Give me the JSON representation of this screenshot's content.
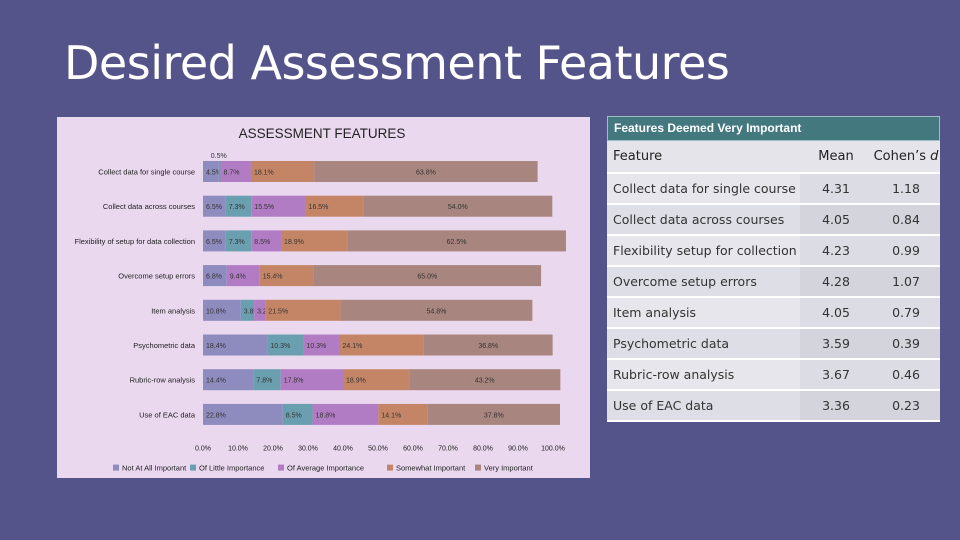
{
  "slide": {
    "title": "Desired Assessment Features"
  },
  "chart_data": {
    "type": "bar",
    "orientation": "horizontal",
    "stacked": true,
    "title": "ASSESSMENT FEATURES",
    "categories": [
      "Collect data for single course",
      "Collect data across courses",
      "Flexibility of setup for data collection",
      "Overcome setup errors",
      "Item analysis",
      "Psychometric data",
      "Rubric-row analysis",
      "Use of EAC data"
    ],
    "series": [
      {
        "name": "Not At All Important",
        "color": "#8e8bbf",
        "values": [
          4.5,
          6.5,
          6.5,
          6.8,
          10.8,
          18.4,
          14.4,
          22.8
        ],
        "labels": [
          "4.5%",
          "6.5%",
          "6.5%",
          "6.8%",
          "10.8%",
          "18.4%",
          "14.4%",
          "22.8%"
        ]
      },
      {
        "name": "Of Little Importance",
        "color": "#6a9fb0",
        "values": [
          0.5,
          7.3,
          7.3,
          0.0,
          3.8,
          10.3,
          7.8,
          8.5
        ],
        "labels": [
          "0.5%",
          "7.3%",
          "7.3%",
          "",
          "3.8%",
          "10.3%",
          "7.8%",
          "8.5%"
        ]
      },
      {
        "name": "Of Average Importance",
        "color": "#b27cc4",
        "values": [
          8.7,
          15.5,
          8.5,
          9.4,
          3.2,
          10.3,
          17.8,
          18.8
        ],
        "labels": [
          "8.7%",
          "15.5%",
          "8.5%",
          "9.4%",
          "3.2%",
          "10.3%",
          "17.8%",
          "18.8%"
        ]
      },
      {
        "name": "Somewhat Important",
        "color": "#c48566",
        "values": [
          18.1,
          16.5,
          18.9,
          15.4,
          21.5,
          24.1,
          18.9,
          14.1
        ],
        "labels": [
          "18.1%",
          "16.5%",
          "18.9%",
          "15.4%",
          "21.5%",
          "24.1%",
          "18.9%",
          "14.1%"
        ]
      },
      {
        "name": "Very Important",
        "color": "#a8857e",
        "values": [
          63.8,
          54.0,
          62.5,
          65.0,
          54.8,
          36.8,
          43.2,
          37.8
        ],
        "labels": [
          "63.8%",
          "54.0%",
          "62.5%",
          "65.0%",
          "54.8%",
          "36.8%",
          "43.2%",
          "37.8%"
        ]
      }
    ],
    "xlim": [
      0,
      100
    ],
    "xticks": [
      "0.0%",
      "10.0%",
      "20.0%",
      "30.0%",
      "40.0%",
      "50.0%",
      "60.0%",
      "70.0%",
      "80.0%",
      "90.0%",
      "100.0%"
    ],
    "legend": "bottom",
    "grid": false
  },
  "table": {
    "caption": "Features Deemed Very Important",
    "headers": {
      "feature": "Feature",
      "mean": "Mean",
      "d_prefix": "Cohen’s ",
      "d_symbol": "d"
    },
    "rows": [
      {
        "feature": "Collect data for single course",
        "mean": "4.31",
        "d": "1.18"
      },
      {
        "feature": "Collect data across courses",
        "mean": "4.05",
        "d": "0.84"
      },
      {
        "feature": "Flexibility setup for collection",
        "mean": "4.23",
        "d": "0.99"
      },
      {
        "feature": "Overcome setup errors",
        "mean": "4.28",
        "d": "1.07"
      },
      {
        "feature": "Item analysis",
        "mean": "4.05",
        "d": "0.79"
      },
      {
        "feature": "Psychometric data",
        "mean": "3.59",
        "d": "0.39"
      },
      {
        "feature": "Rubric-row analysis",
        "mean": "3.67",
        "d": "0.46"
      },
      {
        "feature": "Use of EAC data",
        "mean": "3.36",
        "d": "0.23"
      }
    ]
  }
}
